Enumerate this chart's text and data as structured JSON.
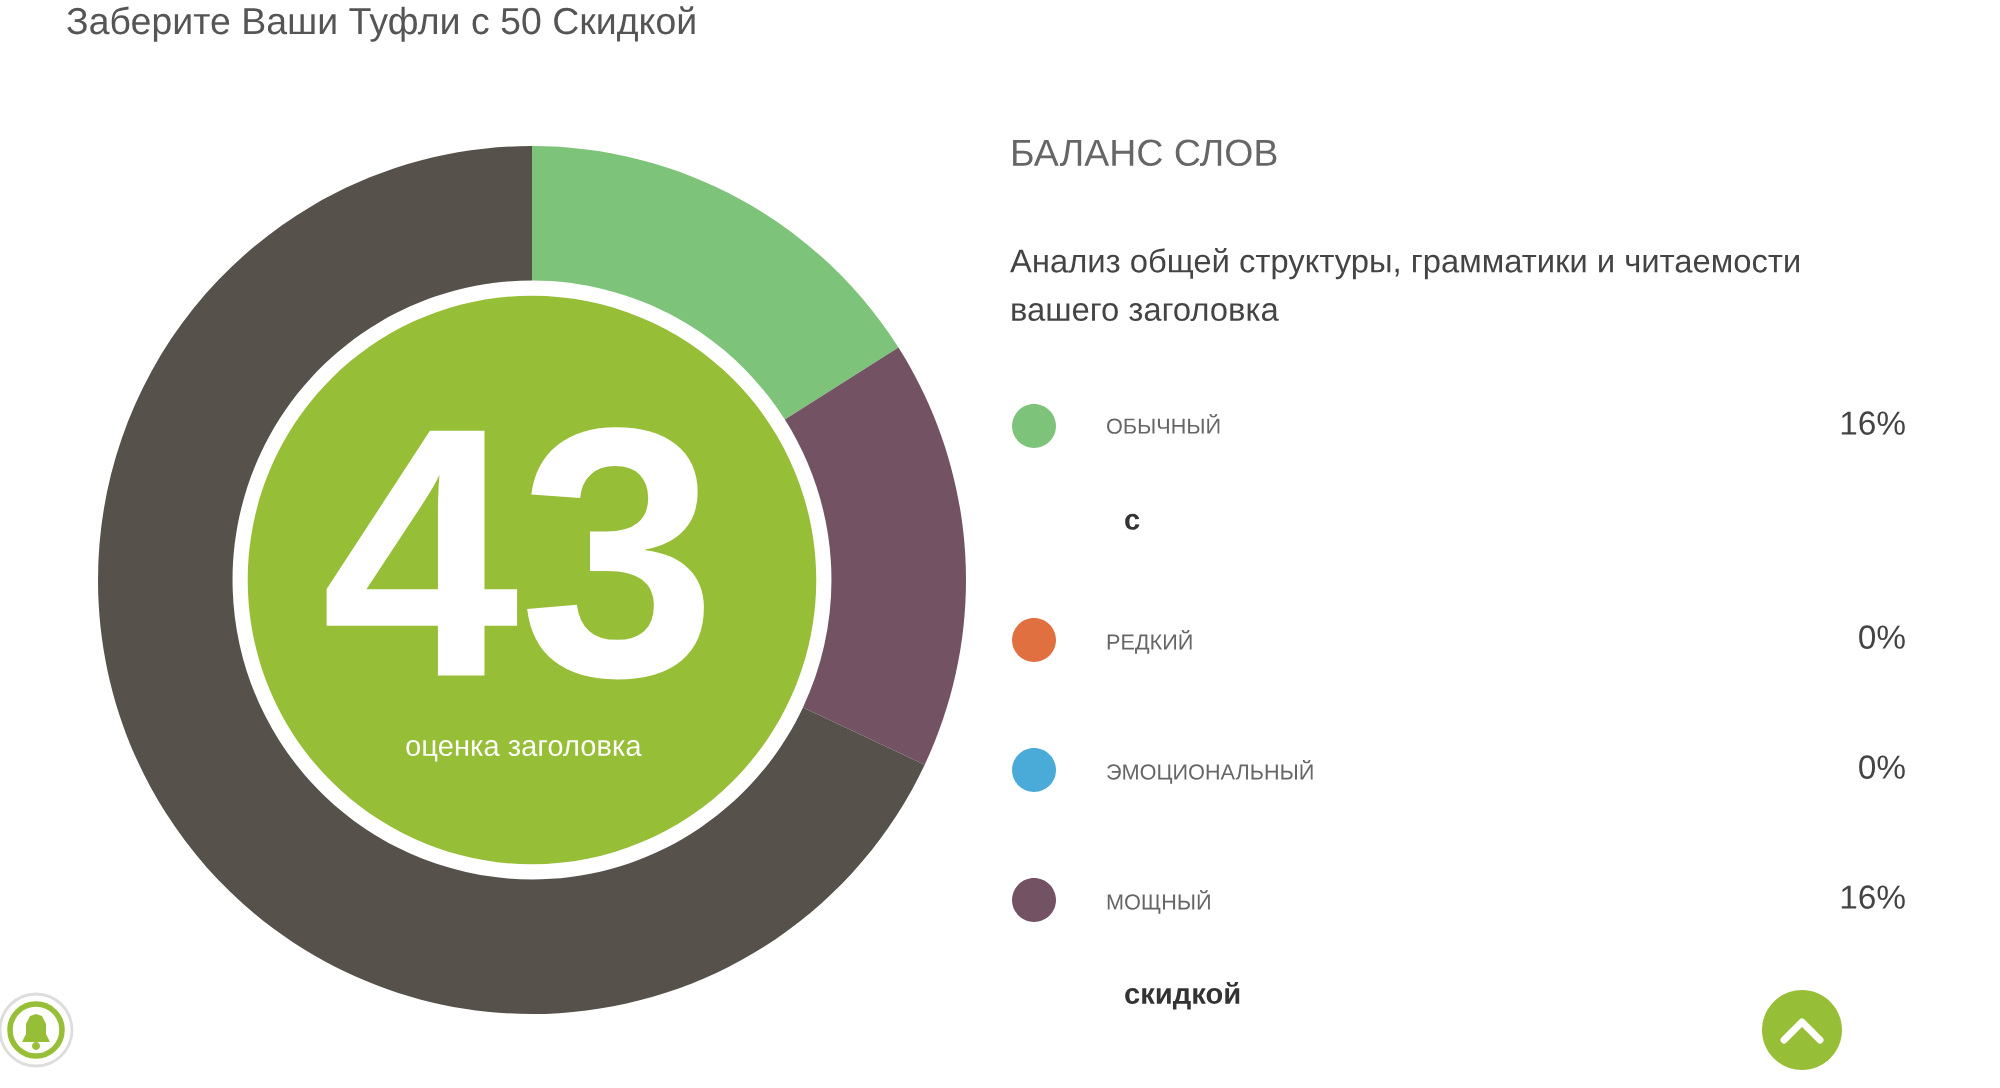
{
  "chart_data": {
    "type": "donut",
    "title": "Заберите Ваши Туфли с 50 Скидкой",
    "legend_title": "БАЛАНС СЛОВ",
    "categories": [
      "ОБЫЧНЫЙ",
      "РЕДКИЙ",
      "ЭМОЦИОНАЛЬНЫЙ",
      "МОЩНЫЙ",
      null
    ],
    "values": [
      16,
      0,
      0,
      16,
      68
    ],
    "value_labels": [
      "16%",
      "0%",
      "0%",
      "16%",
      null
    ],
    "colors": [
      "#7dc47a",
      "#e07040",
      "#4aabd8",
      "#735264",
      "#56514b"
    ],
    "legend": "right",
    "annotations": [
      "Анализ общей структуры, грамматики и читаемости\nвашего заголовка",
      "43",
      "оценка заголовка",
      "с",
      "скидкой"
    ]
  }
}
